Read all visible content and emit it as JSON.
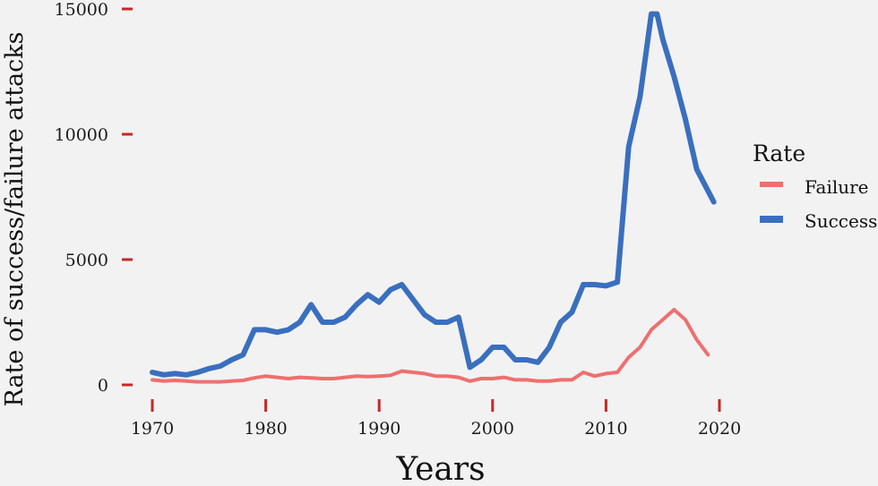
{
  "chart_data": {
    "type": "line",
    "xlabel": "Years",
    "ylabel": "Rate of success/failure attacks",
    "xlim": [
      1970,
      2020
    ],
    "ylim": [
      0,
      15000
    ],
    "x_ticks": [
      "1970",
      "1980",
      "1990",
      "2000",
      "2010",
      "2020"
    ],
    "y_ticks": [
      "0",
      "5000",
      "10000",
      "15000"
    ],
    "legend": {
      "title": "Rate",
      "position": "right"
    },
    "grid": false,
    "tick_color": "#c62828",
    "series": [
      {
        "name": "Failure",
        "color": "#ef6f6f",
        "x": [
          1970,
          1971,
          1972,
          1973,
          1974,
          1975,
          1976,
          1977,
          1978,
          1979,
          1980,
          1981,
          1982,
          1983,
          1984,
          1985,
          1986,
          1987,
          1988,
          1989,
          1990,
          1991,
          1992,
          1994,
          1995,
          1996,
          1997,
          1998,
          1999,
          2000,
          2001,
          2002,
          2003,
          2004,
          2005,
          2006,
          2007,
          2008,
          2009,
          2010,
          2011,
          2012,
          2013,
          2014,
          2015,
          2016,
          2017,
          2018,
          2019
        ],
        "y": [
          200,
          150,
          180,
          150,
          120,
          120,
          120,
          150,
          180,
          280,
          350,
          300,
          250,
          300,
          280,
          250,
          250,
          300,
          350,
          330,
          350,
          380,
          550,
          450,
          350,
          350,
          300,
          150,
          250,
          250,
          300,
          200,
          200,
          150,
          150,
          200,
          200,
          500,
          350,
          450,
          500,
          1100,
          1500,
          2200,
          2600,
          3000,
          2600,
          1800,
          1200
        ]
      },
      {
        "name": "Success",
        "color": "#3a6fbf",
        "x": [
          1970,
          1971,
          1972,
          1973,
          1974,
          1975,
          1976,
          1977,
          1978,
          1979,
          1980,
          1981,
          1982,
          1983,
          1984,
          1985,
          1986,
          1987,
          1988,
          1989,
          1990,
          1991,
          1992,
          1994,
          1995,
          1996,
          1997,
          1998,
          1999,
          2000,
          2001,
          2002,
          2003,
          2004,
          2005,
          2006,
          2007,
          2008,
          2009,
          2010,
          2011,
          2012,
          2013,
          2014,
          2014.5,
          2015,
          2016,
          2017,
          2018,
          2019.5
        ],
        "y": [
          500,
          400,
          450,
          400,
          500,
          650,
          750,
          1000,
          1200,
          2200,
          2200,
          2100,
          2200,
          2500,
          3200,
          2500,
          2500,
          2700,
          3200,
          3600,
          3300,
          3800,
          4000,
          2800,
          2500,
          2500,
          2700,
          700,
          1000,
          1500,
          1500,
          1000,
          1000,
          900,
          1500,
          2500,
          2900,
          4000,
          4000,
          3950,
          4100,
          9500,
          11500,
          14800,
          14800,
          13800,
          12300,
          10600,
          8600,
          7300
        ]
      }
    ]
  }
}
